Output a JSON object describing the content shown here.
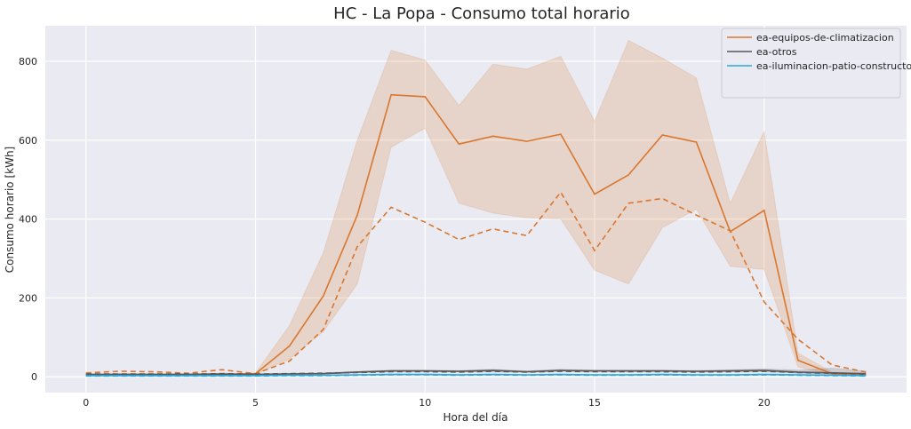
{
  "chart_data": {
    "type": "line",
    "title": "HC - La Popa - Consumo total horario",
    "xlabel": "Hora del día",
    "ylabel": "Consumo horario [kWh]",
    "xlim": [
      -1.2,
      24.2
    ],
    "ylim": [
      -40,
      890
    ],
    "xticks": [
      0,
      5,
      10,
      15,
      20
    ],
    "yticks": [
      0,
      200,
      400,
      600,
      800
    ],
    "grid": true,
    "legend_position": "top-right",
    "x": [
      0,
      1,
      2,
      3,
      4,
      5,
      6,
      7,
      8,
      9,
      10,
      11,
      12,
      13,
      14,
      15,
      16,
      17,
      18,
      19,
      20,
      21,
      22,
      23
    ],
    "series": [
      {
        "name": "ea-equipos-de-climatizacion",
        "color": "#d9772f",
        "mean": [
          5,
          6,
          5,
          5,
          6,
          8,
          78,
          205,
          410,
          715,
          710,
          590,
          610,
          597,
          615,
          463,
          512,
          613,
          595,
          368,
          422,
          42,
          8,
          5
        ],
        "lower": [
          4,
          5,
          4,
          4,
          5,
          6,
          45,
          115,
          235,
          582,
          630,
          440,
          415,
          403,
          400,
          270,
          235,
          378,
          425,
          280,
          272,
          25,
          5,
          4
        ],
        "upper": [
          6,
          7,
          6,
          6,
          7,
          10,
          130,
          315,
          600,
          828,
          803,
          688,
          793,
          780,
          813,
          648,
          853,
          808,
          758,
          440,
          622,
          60,
          12,
          7
        ],
        "median": [
          10,
          14,
          13,
          9,
          18,
          8,
          40,
          120,
          330,
          430,
          392,
          348,
          375,
          358,
          468,
          320,
          440,
          452,
          410,
          370,
          190,
          95,
          30,
          12
        ]
      },
      {
        "name": "ea-otros",
        "color": "#595959",
        "mean": [
          6,
          6,
          6,
          6,
          7,
          6,
          7,
          8,
          12,
          15,
          15,
          14,
          16,
          13,
          16,
          15,
          15,
          15,
          14,
          15,
          16,
          12,
          10,
          8
        ],
        "lower": [
          5,
          5,
          5,
          5,
          6,
          5,
          6,
          7,
          10,
          13,
          13,
          12,
          13,
          11,
          14,
          13,
          13,
          13,
          12,
          13,
          13,
          9,
          6,
          5
        ],
        "upper": [
          8,
          8,
          8,
          8,
          9,
          8,
          9,
          10,
          14,
          17,
          17,
          16,
          19,
          15,
          19,
          17,
          17,
          17,
          16,
          18,
          20,
          17,
          22,
          14
        ],
        "median": [
          7,
          7,
          7,
          7,
          8,
          7,
          8,
          9,
          11,
          13,
          13,
          12,
          14,
          12,
          14,
          13,
          13,
          13,
          12,
          13,
          14,
          11,
          9,
          7
        ]
      },
      {
        "name": "ea-iluminacion-patio-constructor",
        "color": "#29a8e0",
        "mean": [
          3,
          3,
          3,
          3,
          3,
          3,
          4,
          4,
          5,
          6,
          6,
          5,
          6,
          5,
          6,
          5,
          5,
          6,
          5,
          5,
          6,
          5,
          4,
          3
        ],
        "lower": [
          2,
          2,
          2,
          2,
          2,
          2,
          3,
          3,
          4,
          5,
          5,
          4,
          5,
          4,
          5,
          4,
          4,
          5,
          4,
          4,
          5,
          4,
          3,
          2
        ],
        "upper": [
          4,
          4,
          4,
          4,
          4,
          4,
          5,
          5,
          6,
          7,
          7,
          6,
          7,
          6,
          7,
          6,
          6,
          7,
          6,
          6,
          7,
          6,
          5,
          4
        ],
        "median": [
          2,
          2,
          2,
          2,
          2,
          2,
          3,
          3,
          4,
          5,
          5,
          4,
          5,
          4,
          5,
          4,
          4,
          5,
          4,
          4,
          5,
          4,
          3,
          2
        ]
      }
    ]
  }
}
